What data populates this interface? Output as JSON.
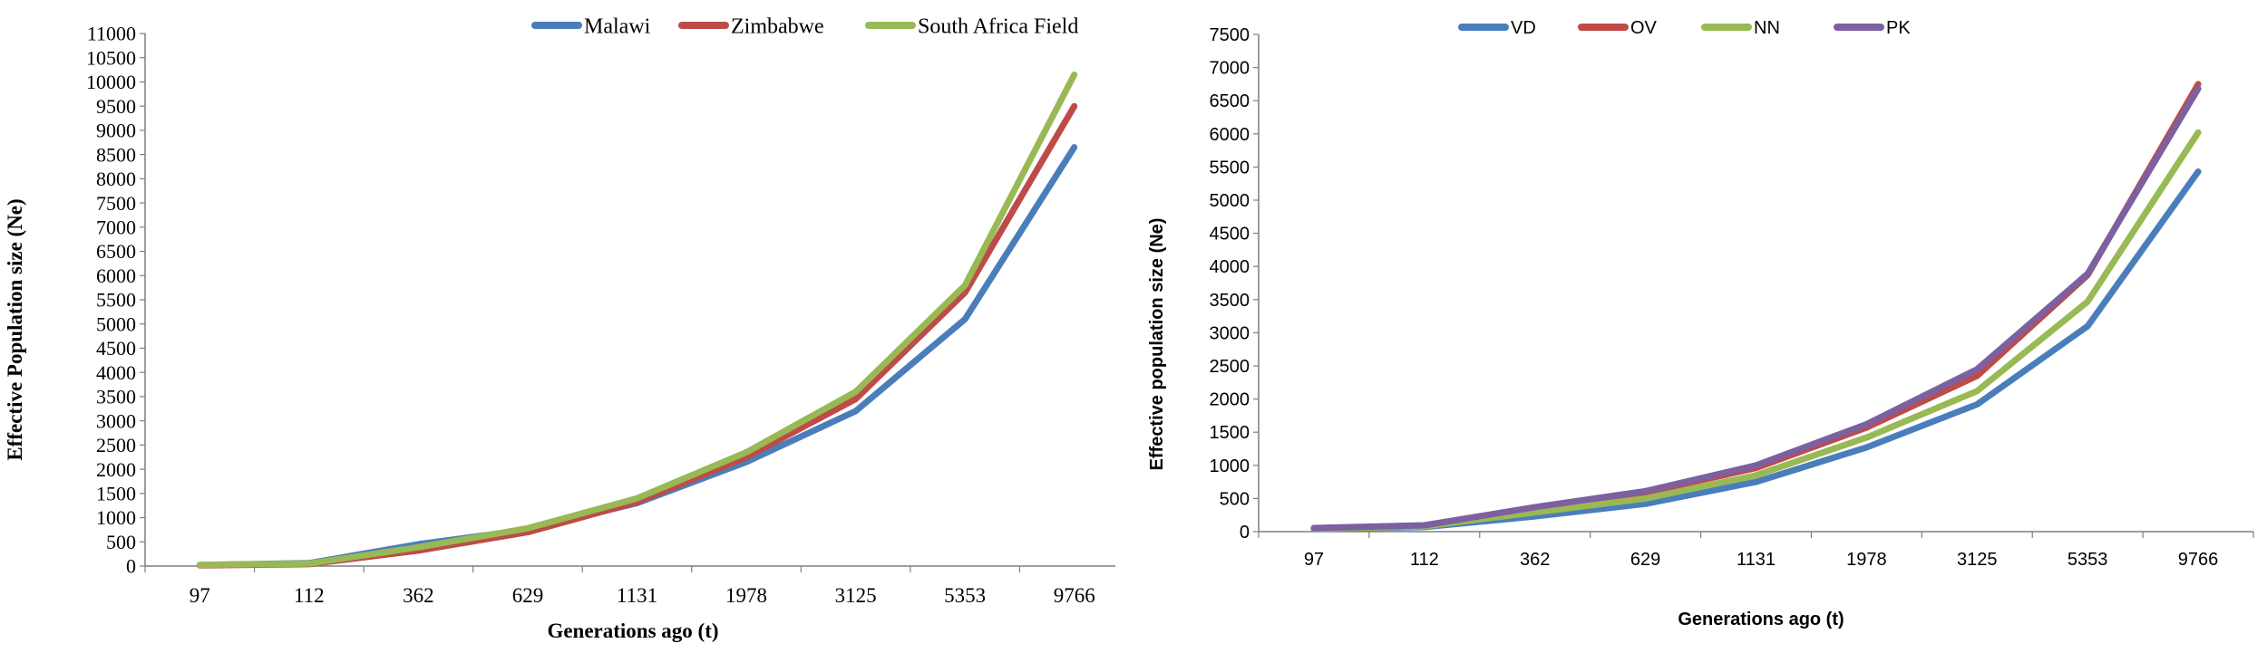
{
  "colors": {
    "axis": "#7f7f7f",
    "text": "#000000",
    "blue": "#4a7ebb",
    "red": "#be4b48",
    "green": "#98b954",
    "purple": "#7d60a0"
  },
  "chart_data": [
    {
      "type": "line",
      "title": "",
      "xlabel": "Generations ago (t)",
      "ylabel": "Effective Population size (Ne)",
      "categories": [
        "97",
        "112",
        "362",
        "629",
        "1131",
        "1978",
        "3125",
        "5353",
        "9766"
      ],
      "ylim": [
        0,
        11000
      ],
      "ytick_step": 500,
      "grid": false,
      "legend_position": "top-right",
      "series": [
        {
          "name": "Malawi",
          "color": "#4a7ebb",
          "values": [
            20,
            60,
            450,
            750,
            1300,
            2150,
            3200,
            5100,
            8650
          ]
        },
        {
          "name": "Zimbabwe",
          "color": "#be4b48",
          "values": [
            15,
            40,
            320,
            700,
            1320,
            2250,
            3450,
            5650,
            9500
          ]
        },
        {
          "name": "South Africa Field",
          "color": "#98b954",
          "values": [
            25,
            50,
            390,
            780,
            1400,
            2350,
            3600,
            5800,
            10150
          ]
        }
      ]
    },
    {
      "type": "line",
      "title": "",
      "xlabel": "Generations ago (t)",
      "ylabel": "Effective population size (Ne)",
      "categories": [
        "97",
        "112",
        "362",
        "629",
        "1131",
        "1978",
        "3125",
        "5353",
        "9766"
      ],
      "ylim": [
        0,
        7500
      ],
      "ytick_step": 500,
      "grid": false,
      "legend_position": "top",
      "series": [
        {
          "name": "VD",
          "color": "#4a7ebb",
          "values": [
            40,
            70,
            230,
            420,
            750,
            1270,
            1920,
            3100,
            5430
          ]
        },
        {
          "name": "OV",
          "color": "#be4b48",
          "values": [
            50,
            90,
            360,
            590,
            960,
            1570,
            2350,
            3870,
            6750
          ]
        },
        {
          "name": "NN",
          "color": "#98b954",
          "values": [
            45,
            80,
            290,
            500,
            850,
            1420,
            2120,
            3470,
            6020
          ]
        },
        {
          "name": "PK",
          "color": "#7d60a0",
          "values": [
            55,
            95,
            370,
            610,
            1000,
            1620,
            2450,
            3890,
            6680
          ]
        }
      ]
    }
  ]
}
